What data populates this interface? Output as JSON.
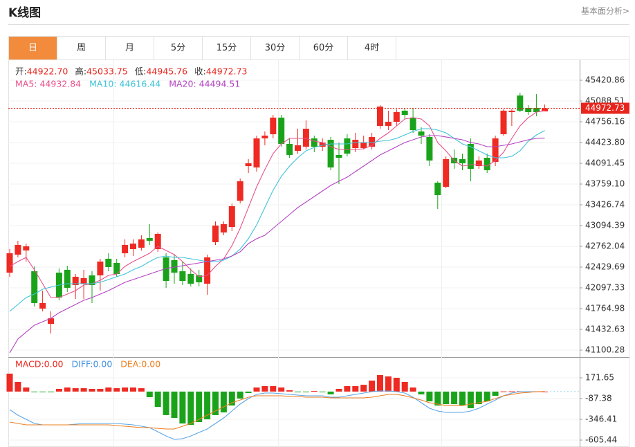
{
  "header": {
    "title": "K线图",
    "link": "基本面分析>"
  },
  "tabs": [
    "日",
    "周",
    "月",
    "5分",
    "15分",
    "30分",
    "60分",
    "4时"
  ],
  "chart_data": [
    {
      "type": "candlestick",
      "info": [
        {
          "label": "开:",
          "value": "44922.70"
        },
        {
          "label": "高:",
          "value": "45033.75"
        },
        {
          "label": "低:",
          "value": "44945.76"
        },
        {
          "label": "收:",
          "value": "44972.73"
        }
      ],
      "open": [
        42341,
        42629,
        42696,
        42363,
        41765,
        41521,
        42341,
        42386,
        42142,
        42164,
        42297,
        42297,
        42563,
        42496,
        42651,
        42718,
        42740,
        42895,
        42718,
        42585,
        42541,
        42363,
        42319,
        42297,
        42164,
        42829,
        42984,
        43072,
        43493,
        44047,
        44025,
        44490,
        44557,
        44823,
        44402,
        44291,
        44357,
        44490,
        44357,
        44468,
        44225,
        44490,
        44335,
        44335,
        44357,
        44690,
        44690,
        44756,
        44934,
        44823,
        44601,
        44513,
        43781,
        43715,
        44180,
        44158,
        44402,
        44047,
        44180,
        44114,
        44557,
        44911,
        45177,
        44978,
        44978,
        44922.7
      ],
      "close": [
        42651,
        42784,
        42762,
        41854,
        41854,
        41610,
        41942,
        42098,
        42275,
        42253,
        42142,
        42518,
        42430,
        42319,
        42784,
        42806,
        42873,
        42851,
        42962,
        42208,
        42341,
        42208,
        42164,
        42186,
        42585,
        43095,
        43117,
        43405,
        43804,
        44092,
        44490,
        44535,
        44823,
        44402,
        44225,
        44380,
        44645,
        44357,
        44424,
        44025,
        44180,
        44247,
        44468,
        44424,
        44513,
        45000,
        44756,
        44911,
        44867,
        44623,
        44535,
        44136,
        43582,
        44158,
        44092,
        44092,
        44003,
        44136,
        43981,
        44490,
        44934,
        44934,
        44934,
        44911,
        44911,
        44972.73
      ],
      "high": [
        42718,
        42851,
        42806,
        42441,
        42053,
        41721,
        42408,
        42452,
        42319,
        42386,
        42363,
        42563,
        42651,
        42563,
        42873,
        42873,
        42939,
        43117,
        42984,
        42651,
        42629,
        42518,
        42408,
        42386,
        42629,
        43161,
        43161,
        43449,
        43848,
        44158,
        44535,
        44601,
        44867,
        44867,
        44490,
        44645,
        44778,
        44535,
        44490,
        44513,
        44424,
        44557,
        44579,
        44535,
        44579,
        45022,
        44934,
        44956,
        44978,
        44978,
        44668,
        44557,
        43804,
        44202,
        44313,
        44247,
        44490,
        44202,
        44247,
        44535,
        44956,
        44956,
        45221,
        45022,
        45199,
        45033.75
      ],
      "low": [
        42275,
        42585,
        42518,
        41798,
        41721,
        41366,
        41898,
        42031,
        41920,
        41920,
        41854,
        42053,
        42363,
        42275,
        42585,
        42607,
        42696,
        42784,
        42674,
        42098,
        42164,
        42142,
        42120,
        42120,
        41987,
        42784,
        42939,
        43006,
        43449,
        43937,
        43959,
        44380,
        44490,
        44357,
        44180,
        44247,
        44313,
        44269,
        44291,
        43981,
        43759,
        44202,
        44269,
        44313,
        44313,
        44645,
        44623,
        44690,
        44801,
        44579,
        44402,
        44047,
        43360,
        43693,
        44003,
        43981,
        43804,
        44003,
        43937,
        44047,
        44535,
        44690,
        44911,
        44867,
        44845,
        44945.76
      ],
      "up_color": "#ee2a22",
      "down_color": "#1aa31a",
      "series": [
        {
          "name": "MA5",
          "legend": "MA5: 44932.84",
          "color": "#e8508a",
          "values": [
            42441,
            42518,
            42585,
            42386,
            42164,
            41942,
            41942,
            41998,
            42053,
            42142,
            42164,
            42219,
            42297,
            42319,
            42441,
            42518,
            42585,
            42651,
            42762,
            42696,
            42629,
            42518,
            42386,
            42275,
            42297,
            42441,
            42563,
            42773,
            43050,
            43383,
            43715,
            43992,
            44247,
            44402,
            44490,
            44490,
            44490,
            44446,
            44424,
            44357,
            44313,
            44313,
            44313,
            44324,
            44380,
            44490,
            44579,
            44690,
            44801,
            44823,
            44801,
            44690,
            44424,
            44291,
            44136,
            44047,
            44069,
            44069,
            44047,
            44136,
            44269,
            44490,
            44690,
            44823,
            44911,
            44932.84
          ]
        },
        {
          "name": "MA10",
          "legend": "MA10: 44616.44",
          "color": "#3ec3d9",
          "values": [
            41721,
            41832,
            41942,
            41998,
            42075,
            42109,
            42142,
            42164,
            42164,
            42164,
            42164,
            42186,
            42230,
            42275,
            42319,
            42386,
            42441,
            42518,
            42585,
            42607,
            42585,
            42585,
            42563,
            42541,
            42518,
            42518,
            42541,
            42607,
            42718,
            42884,
            43106,
            43383,
            43659,
            43881,
            44047,
            44180,
            44291,
            44346,
            44380,
            44402,
            44402,
            44402,
            44424,
            44424,
            44424,
            44446,
            44457,
            44490,
            44546,
            44601,
            44645,
            44645,
            44623,
            44579,
            44490,
            44402,
            44357,
            44291,
            44225,
            44180,
            44180,
            44202,
            44291,
            44446,
            44546,
            44616.44
          ]
        },
        {
          "name": "MA20",
          "legend": "MA20: 44494.51",
          "color": "#b342c2",
          "values": [
            41056,
            41278,
            41389,
            41499,
            41555,
            41610,
            41699,
            41765,
            41832,
            41898,
            41942,
            41998,
            42053,
            42120,
            42186,
            42230,
            42275,
            42319,
            42363,
            42408,
            42430,
            42452,
            42474,
            42496,
            42518,
            42541,
            42563,
            42607,
            42674,
            42806,
            42884,
            42939,
            43050,
            43161,
            43272,
            43383,
            43471,
            43560,
            43648,
            43737,
            43804,
            43870,
            43959,
            44047,
            44136,
            44225,
            44291,
            44357,
            44424,
            44468,
            44513,
            44535,
            44535,
            44513,
            44490,
            44468,
            44424,
            44402,
            44357,
            44357,
            44380,
            44402,
            44435,
            44468,
            44490,
            44494.51
          ]
        }
      ],
      "last_price": 44972.73,
      "last_color": "#e8251d",
      "ylim": [
        40989.5,
        45708.9
      ],
      "yticks": [
        45420.86,
        45088.51,
        44756.16,
        {
          "value": 44423.8,
          "label": "44423.80"
        },
        44091.45,
        {
          "value": 43759.1,
          "label": "43759.10"
        },
        43426.74,
        43094.39,
        42762.04,
        42429.69,
        42097.33,
        41764.98,
        41432.63,
        41100.28
      ],
      "grid": true
    },
    {
      "type": "macd",
      "legend": [
        {
          "text": "MACD:0.00",
          "color": "#e8251d"
        },
        {
          "text": "DIFF:0.00",
          "color": "#3d8fe0"
        },
        {
          "text": "DEA:0.00",
          "color": "#ee7d1e"
        }
      ],
      "values": [
        224,
        120,
        51,
        -4,
        -6,
        -3,
        34,
        51,
        42,
        42,
        34,
        34,
        51,
        42,
        51,
        51,
        42,
        -70,
        -191,
        -294,
        -329,
        -398,
        -416,
        -381,
        -346,
        -294,
        -260,
        -174,
        -87,
        -18,
        51,
        68,
        68,
        51,
        16,
        -2,
        -4,
        8,
        -6,
        -35,
        34,
        68,
        68,
        85,
        137,
        206,
        189,
        172,
        120,
        51,
        -35,
        -122,
        -174,
        -157,
        -157,
        -174,
        -208,
        -157,
        -122,
        -53,
        2,
        3,
        4,
        3,
        2,
        0
      ],
      "up_color": "#ee2a22",
      "down_color": "#1aa31a",
      "series": [
        {
          "name": "DIFF",
          "color": "#5aa5e6",
          "values": [
            -225,
            -294,
            -346,
            -398,
            -415,
            -415,
            -415,
            -415,
            -407,
            -398,
            -398,
            -398,
            -398,
            -398,
            -407,
            -415,
            -433,
            -450,
            -502,
            -554,
            -597,
            -588,
            -554,
            -510,
            -467,
            -398,
            -329,
            -243,
            -156,
            -87,
            -35,
            -18,
            -18,
            -27,
            -35,
            -44,
            -53,
            -53,
            -53,
            -70,
            -70,
            -53,
            -35,
            -18,
            -1,
            8,
            8,
            -1,
            -18,
            -70,
            -139,
            -208,
            -243,
            -260,
            -260,
            -260,
            -243,
            -208,
            -156,
            -105,
            -53,
            -18,
            -1,
            -1,
            -1,
            0
          ]
        },
        {
          "name": "DEA",
          "color": "#ee7d1e",
          "values": [
            -381,
            -398,
            -415,
            -415,
            -415,
            -415,
            -415,
            -415,
            -415,
            -415,
            -415,
            -415,
            -415,
            -424,
            -433,
            -441,
            -450,
            -450,
            -459,
            -467,
            -467,
            -433,
            -398,
            -346,
            -294,
            -243,
            -191,
            -139,
            -105,
            -70,
            -53,
            -53,
            -53,
            -53,
            -61,
            -61,
            -70,
            -70,
            -70,
            -79,
            -79,
            -79,
            -79,
            -79,
            -70,
            -53,
            -35,
            -35,
            -53,
            -79,
            -105,
            -139,
            -156,
            -174,
            -174,
            -174,
            -156,
            -139,
            -122,
            -87,
            -53,
            -35,
            -18,
            -10,
            -1,
            0
          ]
        }
      ],
      "ylim": [
        -691.6,
        422.2
      ],
      "yticks": [
        171.65,
        -87.38,
        -346.41,
        -605.44
      ],
      "grid": true
    }
  ]
}
